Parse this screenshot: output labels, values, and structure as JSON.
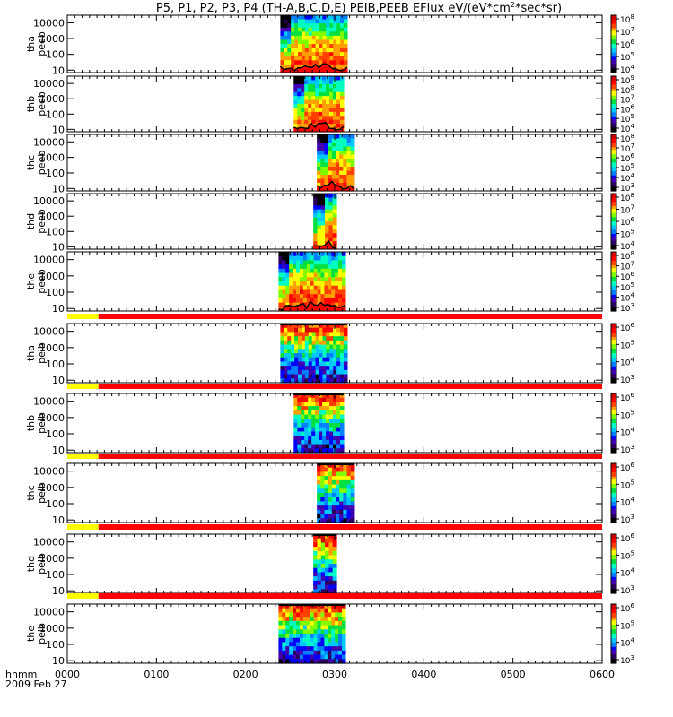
{
  "chart_data": {
    "type": "heatmap",
    "title": "P5, P1, P2, P3, P4 (TH-A,B,C,D,E) PEIB,PEEB EFlux eV/(eV*cm",
    "title_sup": "2",
    "title_tail": "*sec*sr)",
    "xlabel": "hhmm",
    "date_label": "2009 Feb 27",
    "x_ticks": [
      "0000",
      "0100",
      "0200",
      "0300",
      "0400",
      "0500",
      "0600"
    ],
    "x_range_hours": [
      0,
      6
    ],
    "y_scale": "log",
    "y_range": [
      7,
      30000
    ],
    "y_ticks": [
      "10",
      "100",
      "1000",
      "10000"
    ],
    "colorscale": "rainbow",
    "colors": {
      "colorscale": [
        "#000000",
        "#2a005c",
        "#4000b0",
        "#0000ff",
        "#0080ff",
        "#00c8ff",
        "#00ffc0",
        "#00e040",
        "#80ff00",
        "#ffff00",
        "#ffa000",
        "#ff4000",
        "#ff0000",
        "#d00000"
      ],
      "flag_yellow": "#ffff00",
      "flag_red": "#ff0000",
      "low_energy_fill": "#ff0000",
      "potential_line": "#000000"
    },
    "panels": [
      {
        "probe": "tha",
        "label1": "tha",
        "label2": "peeb",
        "species": "electron",
        "t_start": 2.39,
        "t_end": 3.14,
        "cbar_ticks": [
          "10",
          "10",
          "10",
          "10",
          "10"
        ],
        "cbar_exps": [
          "8",
          "7",
          "6",
          "5",
          "4"
        ]
      },
      {
        "probe": "thb",
        "label1": "thb",
        "label2": "peeb",
        "species": "electron",
        "t_start": 2.54,
        "t_end": 3.1,
        "cbar_ticks": [
          "10",
          "10",
          "10",
          "10",
          "10",
          "10"
        ],
        "cbar_exps": [
          "9",
          "8",
          "7",
          "6",
          "5",
          "4"
        ]
      },
      {
        "probe": "thc",
        "label1": "thc",
        "label2": "peeb",
        "species": "electron",
        "t_start": 2.8,
        "t_end": 3.22,
        "cbar_ticks": [
          "10",
          "10",
          "10",
          "10",
          "10",
          "10"
        ],
        "cbar_exps": [
          "8",
          "7",
          "6",
          "5",
          "4",
          "3"
        ]
      },
      {
        "probe": "thd",
        "label1": "thd",
        "label2": "peeb",
        "species": "electron",
        "t_start": 2.76,
        "t_end": 3.02,
        "cbar_ticks": [
          "10",
          "10",
          "10",
          "10",
          "10"
        ],
        "cbar_exps": [
          "8",
          "7",
          "6",
          "5",
          "4"
        ]
      },
      {
        "probe": "the",
        "label1": "the",
        "label2": "peeb",
        "species": "electron",
        "t_start": 2.37,
        "t_end": 3.12,
        "cbar_ticks": [
          "10",
          "10",
          "10",
          "10",
          "10",
          "10"
        ],
        "cbar_exps": [
          "8",
          "7",
          "6",
          "5",
          "4",
          "3"
        ]
      },
      {
        "probe": "tha",
        "label1": "tha",
        "label2": "peib",
        "species": "ion",
        "t_start": 2.39,
        "t_end": 3.14,
        "cbar_ticks": [
          "10",
          "10",
          "10",
          "10"
        ],
        "cbar_exps": [
          "6",
          "5",
          "4",
          "3"
        ]
      },
      {
        "probe": "thb",
        "label1": "thb",
        "label2": "peib",
        "species": "ion",
        "t_start": 2.54,
        "t_end": 3.1,
        "cbar_ticks": [
          "10",
          "10",
          "10",
          "10"
        ],
        "cbar_exps": [
          "6",
          "5",
          "4",
          "3"
        ]
      },
      {
        "probe": "thc",
        "label1": "thc",
        "label2": "peib",
        "species": "ion",
        "t_start": 2.8,
        "t_end": 3.22,
        "cbar_ticks": [
          "10",
          "10",
          "10",
          "10"
        ],
        "cbar_exps": [
          "6",
          "5",
          "4",
          "3"
        ]
      },
      {
        "probe": "thd",
        "label1": "thd",
        "label2": "peib",
        "species": "ion",
        "t_start": 2.76,
        "t_end": 3.02,
        "cbar_ticks": [
          "10",
          "10",
          "10",
          "10"
        ],
        "cbar_exps": [
          "6",
          "5",
          "4",
          "3"
        ]
      },
      {
        "probe": "the",
        "label1": "the",
        "label2": "peib",
        "species": "ion",
        "t_start": 2.37,
        "t_end": 3.12,
        "cbar_ticks": [
          "10",
          "10",
          "10",
          "10"
        ],
        "cbar_exps": [
          "6",
          "5",
          "4",
          "3"
        ]
      }
    ],
    "flag_bar": {
      "yellow_end_hours": 0.35
    }
  }
}
